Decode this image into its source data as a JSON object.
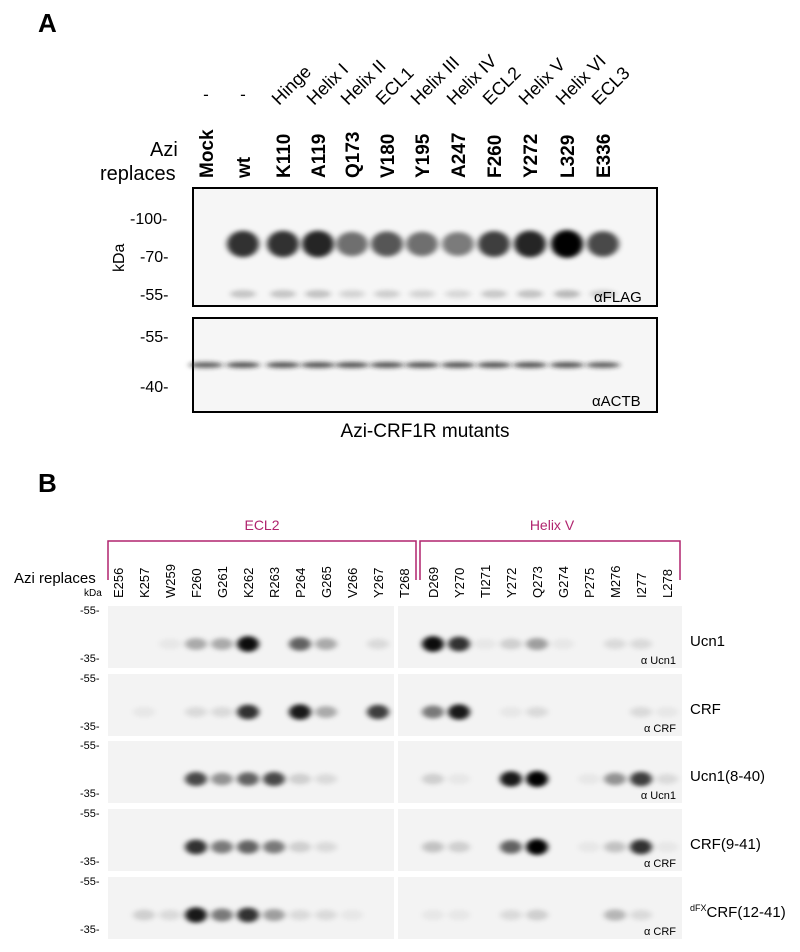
{
  "panelA": {
    "label": "A",
    "azi_label": "Azi",
    "replaces_label": "replaces",
    "lanes": [
      {
        "region": "-",
        "residue": "Mock",
        "flag": 0,
        "actb": 0.7
      },
      {
        "region": "-",
        "residue": "wt",
        "flag": 0.8,
        "actb": 0.75
      },
      {
        "region": "Hinge",
        "residue": "K110",
        "flag": 0.8,
        "actb": 0.75
      },
      {
        "region": "Helix I",
        "residue": "A119",
        "flag": 0.85,
        "actb": 0.75
      },
      {
        "region": "Helix II",
        "residue": "Q173",
        "flag": 0.55,
        "actb": 0.75
      },
      {
        "region": "ECL1",
        "residue": "V180",
        "flag": 0.65,
        "actb": 0.75
      },
      {
        "region": "Helix III",
        "residue": "Y195",
        "flag": 0.55,
        "actb": 0.75
      },
      {
        "region": "Helix IV",
        "residue": "A247",
        "flag": 0.5,
        "actb": 0.75
      },
      {
        "region": "ECL2",
        "residue": "F260",
        "flag": 0.75,
        "actb": 0.75
      },
      {
        "region": "Helix V",
        "residue": "Y272",
        "flag": 0.85,
        "actb": 0.75
      },
      {
        "region": "Helix VI",
        "residue": "L329",
        "flag": 1.0,
        "actb": 0.75
      },
      {
        "region": "ECL3",
        "residue": "E336",
        "flag": 0.7,
        "actb": 0.7
      }
    ],
    "kda_label": "kDa",
    "flag_markers": [
      "-100-",
      "-70-",
      "-55-"
    ],
    "actb_markers": [
      "-55-",
      "-40-"
    ],
    "flag_antibody": "αFLAG",
    "actb_antibody": "αACTB",
    "caption": "Azi-CRF1R mutants"
  },
  "panelB": {
    "label": "B",
    "region_left": "ECL2",
    "region_right": "Helix V",
    "region_color": "#b0246e",
    "azi_replaces": "Azi replaces",
    "kda_label": "kDa",
    "lanes_left": [
      "E256",
      "K257",
      "W259",
      "F260",
      "G261",
      "K262",
      "R263",
      "P264",
      "G265",
      "V266",
      "Y267",
      "T268"
    ],
    "lanes_right": [
      "D269",
      "Y270",
      "TI271",
      "Y272",
      "Q273",
      "G274",
      "P275",
      "M276",
      "I277",
      "L278"
    ],
    "rows": [
      {
        "ligand": "Ucn1",
        "antibody": "α Ucn1",
        "m1": "-55-",
        "m2": "-35-",
        "left": [
          0,
          0,
          0.05,
          0.3,
          0.3,
          0.95,
          0,
          0.6,
          0.3,
          0,
          0.1,
          0
        ],
        "right": [
          0.95,
          0.8,
          0.05,
          0.15,
          0.35,
          0.05,
          0,
          0.1,
          0.1,
          0
        ]
      },
      {
        "ligand": "CRF",
        "antibody": "α CRF",
        "m1": "-55-",
        "m2": "-35-",
        "left": [
          0,
          0.05,
          0,
          0.1,
          0.1,
          0.8,
          0,
          0.9,
          0.3,
          0,
          0.75,
          0
        ],
        "right": [
          0.5,
          0.9,
          0,
          0.05,
          0.1,
          0,
          0,
          0,
          0.1,
          0.05
        ]
      },
      {
        "ligand": "Ucn1(8-40)",
        "antibody": "α Ucn1",
        "m1": "-55-",
        "m2": "-35-",
        "left": [
          0,
          0,
          0,
          0.7,
          0.4,
          0.6,
          0.7,
          0.15,
          0.1,
          0,
          0,
          0
        ],
        "right": [
          0.15,
          0.05,
          0,
          0.9,
          1.0,
          0,
          0.05,
          0.4,
          0.75,
          0.1
        ]
      },
      {
        "ligand": "CRF(9-41)",
        "antibody": "α CRF",
        "m1": "-55-",
        "m2": "-35-",
        "left": [
          0,
          0,
          0,
          0.8,
          0.5,
          0.6,
          0.5,
          0.15,
          0.1,
          0,
          0,
          0
        ],
        "right": [
          0.2,
          0.15,
          0,
          0.6,
          1.0,
          0,
          0.05,
          0.2,
          0.8,
          0.05
        ]
      },
      {
        "ligand_sup": "dFX",
        "ligand": "CRF(12-41)",
        "antibody": "α CRF",
        "m1": "-55-",
        "m2": "-35-",
        "left": [
          0,
          0.15,
          0.1,
          0.9,
          0.5,
          0.8,
          0.35,
          0.1,
          0.1,
          0.05,
          0,
          0
        ],
        "right": [
          0.05,
          0.05,
          0,
          0.1,
          0.15,
          0,
          0,
          0.25,
          0.1,
          0
        ]
      }
    ]
  }
}
